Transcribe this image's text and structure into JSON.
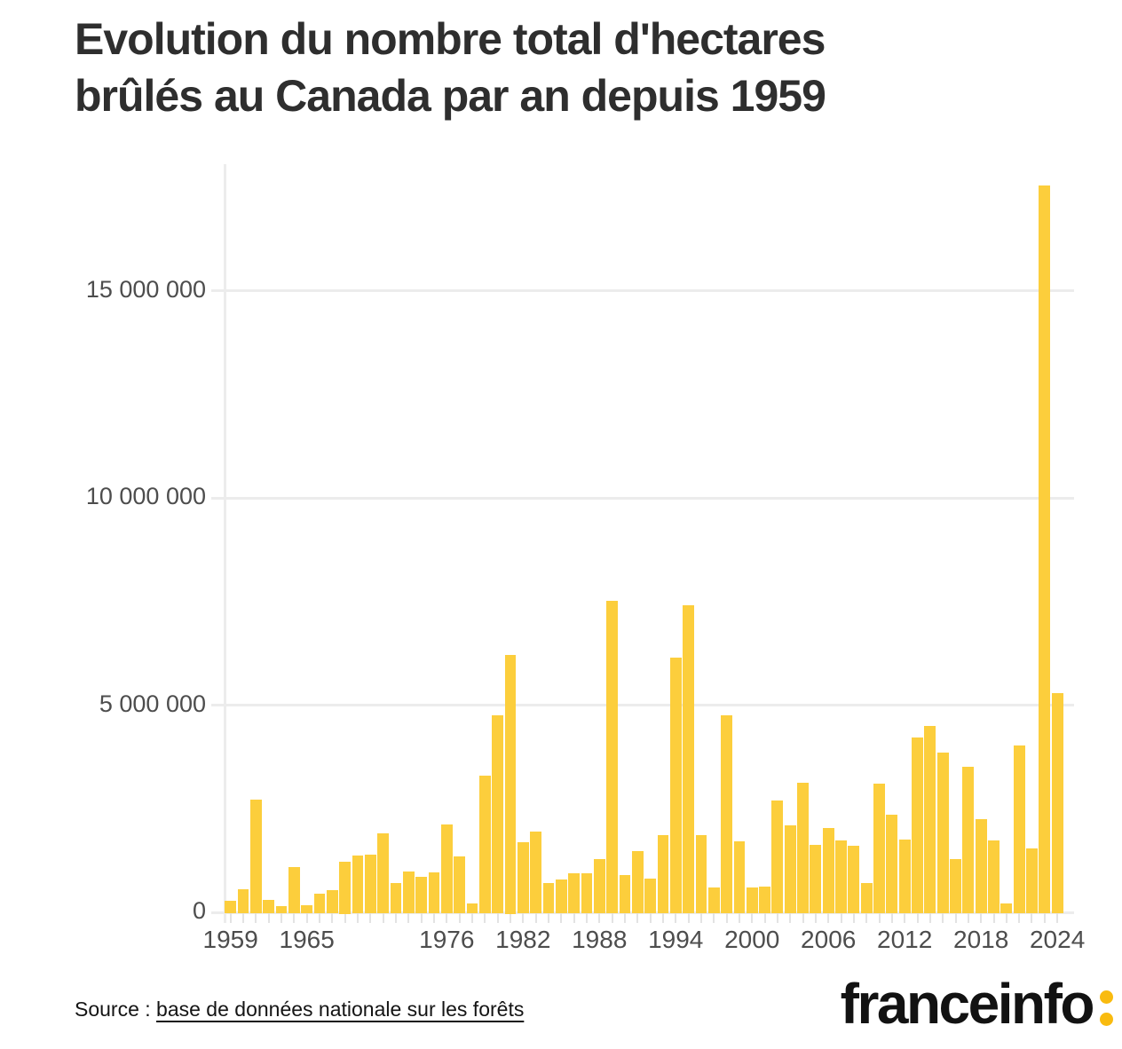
{
  "title": {
    "full": "Evolution du nombre total d'hectares brûlés au Canada par an depuis 1959",
    "line1": "Evolution du nombre total d'hectares",
    "line2": "brûlés au Canada par an depuis 1959"
  },
  "source": {
    "prefix": "Source : ",
    "link_label": "base de données nationale sur les forêts"
  },
  "logo": {
    "text": "franceinfo"
  },
  "colors": {
    "bar": "#FCCE3C",
    "grid": "#ececec",
    "axis_text": "#4d4d4d",
    "title_text": "#2e2e2e",
    "logo_text": "#121212",
    "logo_colon": "#F9BB0F",
    "background": "#ffffff"
  },
  "chart_data": {
    "type": "bar",
    "title": "Evolution du nombre total d'hectares brûlés au Canada par an depuis 1959",
    "xlabel": "",
    "ylabel": "hectares brûlés",
    "grid": "horizontal",
    "legend": "none",
    "ylim": [
      0,
      18000000
    ],
    "y_ticks": [
      {
        "value": 0,
        "label": "0"
      },
      {
        "value": 5000000,
        "label": "5 000 000"
      },
      {
        "value": 10000000,
        "label": "10 000 000"
      },
      {
        "value": 15000000,
        "label": "15 000 000"
      }
    ],
    "x_axis_labels": [
      1959,
      1965,
      1976,
      1982,
      1988,
      1994,
      2000,
      2006,
      2012,
      2018,
      2024
    ],
    "x": [
      1959,
      1960,
      1961,
      1962,
      1963,
      1964,
      1965,
      1966,
      1967,
      1968,
      1969,
      1970,
      1971,
      1972,
      1973,
      1974,
      1975,
      1976,
      1977,
      1978,
      1979,
      1980,
      1981,
      1982,
      1983,
      1984,
      1985,
      1986,
      1987,
      1988,
      1989,
      1990,
      1991,
      1992,
      1993,
      1994,
      1995,
      1996,
      1997,
      1998,
      1999,
      2000,
      2001,
      2002,
      2003,
      2004,
      2005,
      2006,
      2007,
      2008,
      2009,
      2010,
      2011,
      2012,
      2013,
      2014,
      2015,
      2016,
      2017,
      2018,
      2019,
      2020,
      2021,
      2022,
      2023,
      2024
    ],
    "values": [
      300000,
      590000,
      2750000,
      330000,
      180000,
      1130000,
      200000,
      480000,
      570000,
      1250000,
      1410000,
      1430000,
      1930000,
      740000,
      1020000,
      890000,
      990000,
      2150000,
      1380000,
      250000,
      3340000,
      4790000,
      6250000,
      1730000,
      1980000,
      740000,
      820000,
      980000,
      980000,
      1310000,
      7550000,
      940000,
      1510000,
      840000,
      1900000,
      6170000,
      7450000,
      1890000,
      640000,
      4790000,
      1750000,
      640000,
      650000,
      2730000,
      2130000,
      3150000,
      1660000,
      2070000,
      1770000,
      1640000,
      740000,
      3140000,
      2390000,
      1790000,
      4250000,
      4520000,
      3880000,
      1310000,
      3550000,
      2290000,
      1760000,
      240000,
      4050000,
      1570000,
      17560000,
      5330000
    ]
  }
}
